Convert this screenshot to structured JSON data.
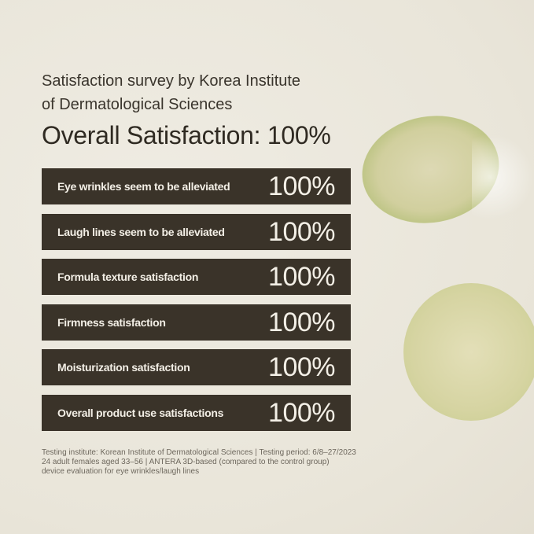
{
  "header": {
    "subtitle_line1": "Satisfaction survey by Korea Institute",
    "subtitle_line2": "of Dermatological Sciences",
    "title": "Overall Satisfaction: 100%"
  },
  "results": [
    {
      "label": "Eye wrinkles seem to be alleviated",
      "value": "100%"
    },
    {
      "label": "Laugh lines seem to be alleviated",
      "value": "100%"
    },
    {
      "label": "Formula texture satisfaction",
      "value": "100%"
    },
    {
      "label": "Firmness satisfaction",
      "value": "100%"
    },
    {
      "label": "Moisturization satisfaction",
      "value": "100%"
    },
    {
      "label": "Overall product use satisfactions",
      "value": "100%"
    }
  ],
  "footnote": {
    "line1": "Testing institute: Korean Institute of Dermatological Sciences | Testing period: 6/8–27/2023",
    "line2": "24 adult females aged 33–56 | ANTERA 3D-based (compared to the control group)",
    "line3": "device evaluation for eye wrinkles/laugh lines"
  },
  "colors": {
    "background": "#ece8dd",
    "bar": "#3a3329",
    "bar_text": "#f3efe6"
  }
}
